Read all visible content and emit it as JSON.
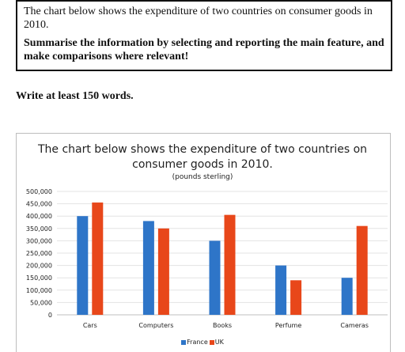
{
  "task": {
    "line1": "The chart below shows the expenditure of two countries on consumer goods in 2010.",
    "line2": "Summarise the information by selecting and reporting the main feature, and make comparisons where relevant!"
  },
  "write_instruction": "Write at least 150 words.",
  "chart_data": {
    "type": "bar",
    "title": "The chart below shows the expenditure of two countries on consumer goods in 2010.",
    "title_line1": "The chart below shows the expenditure of two countries on",
    "title_line2": "consumer goods in 2010.",
    "subtitle": "(pounds sterling)",
    "categories": [
      "Cars",
      "Computers",
      "Books",
      "Perfume",
      "Cameras"
    ],
    "series": [
      {
        "name": "France",
        "color": "#2e75c8",
        "values": [
          400000,
          380000,
          300000,
          200000,
          150000
        ]
      },
      {
        "name": "UK",
        "color": "#e8471a",
        "values": [
          455000,
          350000,
          405000,
          140000,
          360000
        ]
      }
    ],
    "ylim": [
      0,
      500000
    ],
    "yticks": [
      0,
      50000,
      100000,
      150000,
      200000,
      250000,
      300000,
      350000,
      400000,
      450000,
      500000
    ],
    "ytick_labels": [
      "0",
      "50,000",
      "100,000",
      "150,000",
      "200,000",
      "250,000",
      "300,000",
      "350,000",
      "400,000",
      "450,000",
      "500,000"
    ],
    "grid": true,
    "legend_position": "bottom"
  }
}
